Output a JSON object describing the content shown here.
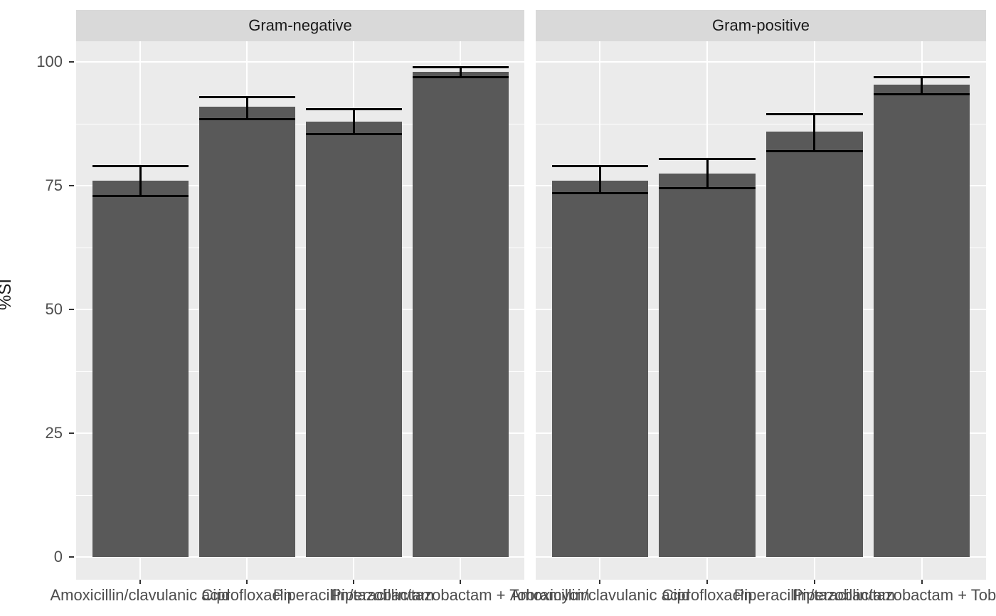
{
  "chart_data": {
    "type": "bar",
    "title": "",
    "xlabel": "",
    "ylabel": "%SI",
    "ylim": [
      0,
      100
    ],
    "y_major_ticks": [
      0,
      25,
      50,
      75,
      100
    ],
    "y_minor_ticks": [
      12.5,
      37.5,
      62.5,
      87.5
    ],
    "grid": "on",
    "legend": "none",
    "categories": [
      "Amoxicillin/clavulanic acid",
      "Ciprofloxacin",
      "Piperacillin/tazobactam",
      "Piperacillin/tazobactam + Tobramycin"
    ],
    "facets": [
      {
        "label": "Gram-negative",
        "series": {
          "name": "%SI",
          "means": [
            76,
            91,
            88,
            98
          ],
          "ci_low": [
            73,
            88.5,
            85.5,
            97
          ],
          "ci_high": [
            79,
            93,
            90.5,
            99
          ]
        }
      },
      {
        "label": "Gram-positive",
        "series": {
          "name": "%SI",
          "means": [
            76,
            77.5,
            86,
            95.5
          ],
          "ci_low": [
            73.5,
            74.5,
            82,
            93.5
          ],
          "ci_high": [
            79,
            80.5,
            89.5,
            97
          ]
        }
      }
    ]
  },
  "colors": {
    "bar_fill": "#595959",
    "error_bar": "#000000",
    "panel_background": "#ebebeb",
    "strip_background": "#d9d9d9",
    "gridline": "#ffffff",
    "axis_text": "#4d4d4d",
    "strip_text": "#1a1a1a",
    "tick_mark": "#333333"
  }
}
